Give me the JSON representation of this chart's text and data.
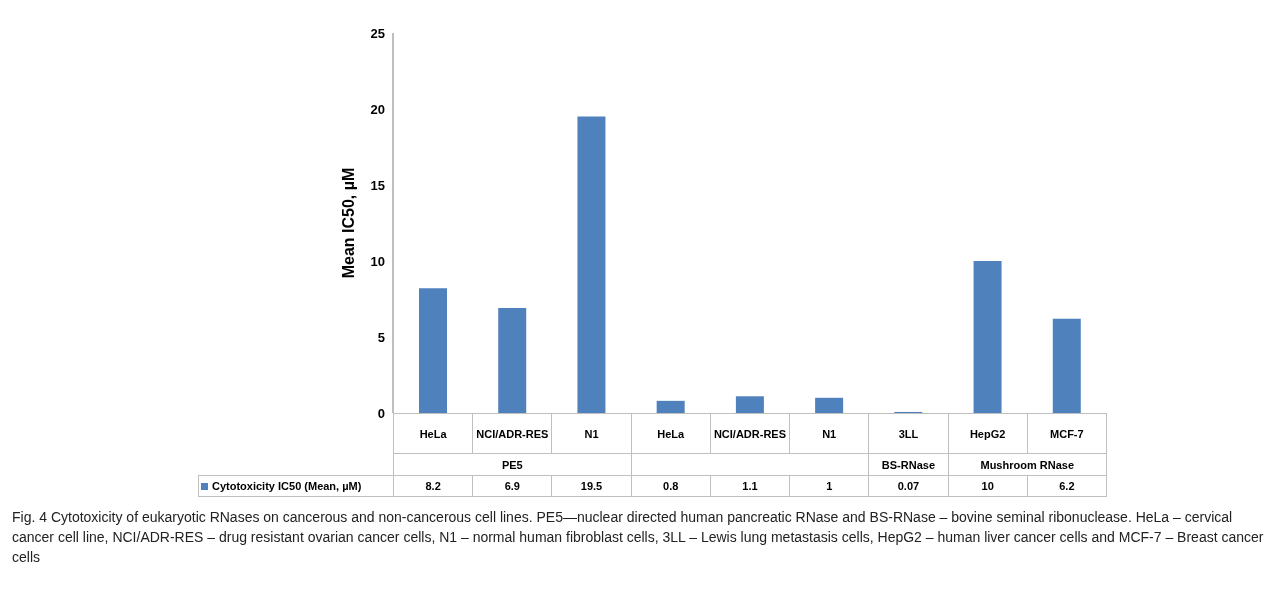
{
  "chart_data": {
    "type": "bar",
    "ylabel": "Mean IC50, µM",
    "categories": [
      "HeLa",
      "NCI/ADR-RES",
      "N1",
      "HeLa",
      "NCI/ADR-RES",
      "N1",
      "3LL",
      "HepG2",
      "MCF-7"
    ],
    "series": [
      {
        "name": "Cytotoxicity IC50 (Mean, µM)",
        "color": "#4f81bd",
        "values": [
          8.2,
          6.9,
          19.5,
          0.8,
          1.1,
          1,
          0.07,
          10,
          6.2
        ]
      }
    ],
    "ylim": [
      0,
      25
    ],
    "yticks": [
      0,
      5,
      10,
      15,
      20,
      25
    ],
    "grid": false,
    "legend": "bottom",
    "data_labels": true,
    "annotations": [
      "PE5",
      "BS-RNase",
      "Mushroom RNase",
      "Fig. 4 Cytotoxicity of eukaryotic RNases on cancerous and non-cancerous cell lines. PE5—nuclear directed human pancreatic RNase and BS-RNase – bovine seminal ribonuclease. HeLa – cervical cancer cell line, NCI/ADR-RES – drug resistant ovarian cancer cells, N1 – normal human fibroblast cells, 3LL – Lewis lung metastasis cells, HepG2 – human liver cancer cells and MCF-7 – Breast cancer cells"
    ]
  }
}
